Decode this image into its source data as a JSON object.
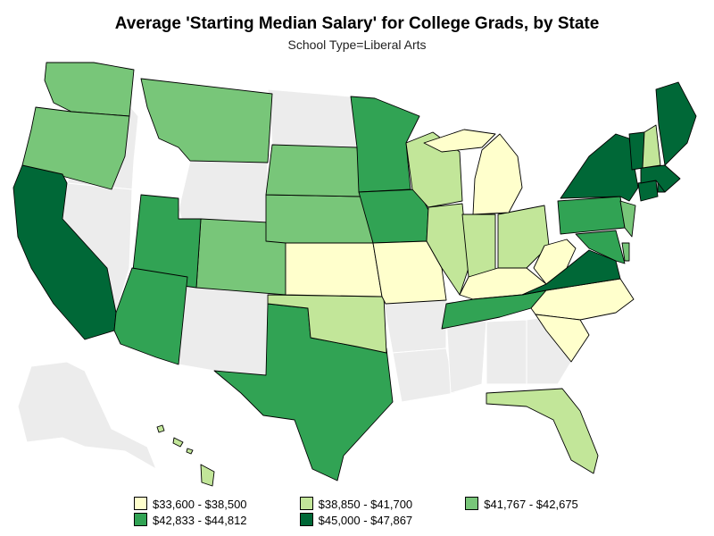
{
  "title": "Average 'Starting Median Salary' for College Grads, by State",
  "subtitle": "School Type=Liberal Arts",
  "no_data_color": "#ececec",
  "legend": [
    {
      "label": "$33,600 - $38,500",
      "color": "#ffffcc"
    },
    {
      "label": "$38,850 - $41,700",
      "color": "#c2e699"
    },
    {
      "label": "$41,767 - $42,675",
      "color": "#78c679"
    },
    {
      "label": "$42,833 - $44,812",
      "color": "#31a354"
    },
    {
      "label": "$45,000 - $47,867",
      "color": "#006837"
    }
  ],
  "state_classes": {
    "WA": 2,
    "OR": 2,
    "CA": 4,
    "MT": 2,
    "CO": 2,
    "UT": 3,
    "AZ": 3,
    "TX": 3,
    "OK": 1,
    "KS": 0,
    "NE": 2,
    "SD": 2,
    "MN": 3,
    "IA": 3,
    "MO": 0,
    "WI": 1,
    "IL": 1,
    "IN": 1,
    "OH": 1,
    "MI": 0,
    "KY": 0,
    "TN": 3,
    "NC": 0,
    "SC": 0,
    "VA": 4,
    "WV": 0,
    "PA": 3,
    "NY": 4,
    "NJ": 2,
    "MD": 3,
    "DE": 2,
    "CT": 4,
    "RI": 4,
    "MA": 4,
    "VT": 4,
    "NH": 1,
    "ME": 4,
    "FL": 1,
    "HI": 1
  }
}
